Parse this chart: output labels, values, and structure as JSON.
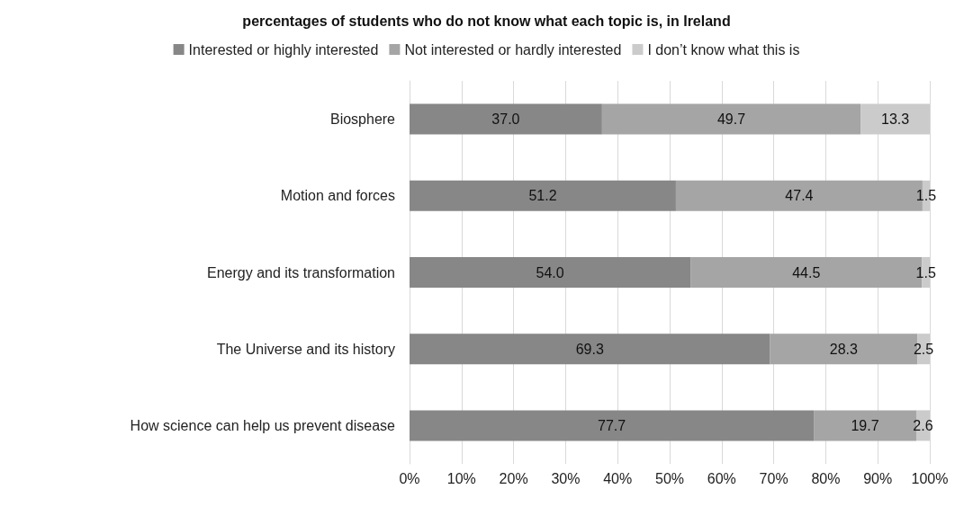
{
  "chart_data": {
    "type": "bar",
    "orientation": "horizontal",
    "stacked": true,
    "title": "percentages of students who do not know what each topic is, in Ireland",
    "categories": [
      "Biosphere",
      "Motion and forces",
      "Energy and its transformation",
      "The Universe and its history",
      "How science can help us prevent disease"
    ],
    "series": [
      {
        "name": "Interested or highly interested",
        "color": "#878787",
        "values": [
          37.0,
          51.2,
          54.0,
          69.3,
          77.7
        ],
        "value_labels": [
          "37.0",
          "51.2",
          "54.0",
          "69.3",
          "77.7"
        ]
      },
      {
        "name": "Not interested or hardly interested",
        "color": "#a5a5a5",
        "values": [
          49.7,
          47.4,
          44.5,
          28.3,
          19.7
        ],
        "value_labels": [
          "49.7",
          "47.4",
          "44.5",
          "28.3",
          "19.7"
        ]
      },
      {
        "name": "I don’t know what this is",
        "color": "#cbcbcb",
        "values": [
          13.3,
          1.5,
          1.5,
          2.5,
          2.6
        ],
        "value_labels": [
          "13.3",
          "1.5",
          "1.5",
          "2.5",
          "2.6"
        ]
      }
    ],
    "xlim": [
      0,
      100
    ],
    "xticks": [
      {
        "value": 0,
        "label": "0%"
      },
      {
        "value": 10,
        "label": "10%"
      },
      {
        "value": 20,
        "label": "20%"
      },
      {
        "value": 30,
        "label": "30%"
      },
      {
        "value": 40,
        "label": "40%"
      },
      {
        "value": 50,
        "label": "50%"
      },
      {
        "value": 60,
        "label": "60%"
      },
      {
        "value": 70,
        "label": "70%"
      },
      {
        "value": 80,
        "label": "80%"
      },
      {
        "value": 90,
        "label": "90%"
      },
      {
        "value": 100,
        "label": "100%"
      }
    ],
    "grid": "x",
    "legend": "top"
  }
}
